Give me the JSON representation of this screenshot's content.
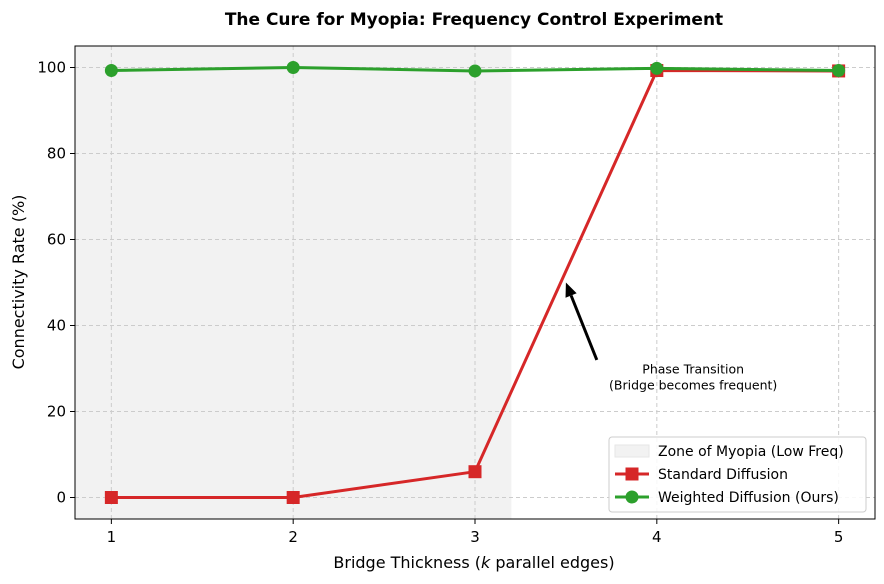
{
  "chart_data": {
    "type": "line",
    "title": "The Cure for Myopia: Frequency Control Experiment",
    "xlabel_prefix": "Bridge Thickness (",
    "xlabel_var": "k",
    "xlabel_suffix": " parallel edges)",
    "ylabel": "Connectivity Rate (%)",
    "x": [
      1,
      2,
      3,
      4,
      5
    ],
    "xlim": [
      0.8,
      5.2
    ],
    "ylim": [
      -5,
      105
    ],
    "xticks": [
      1,
      2,
      3,
      4,
      5
    ],
    "yticks": [
      0,
      20,
      40,
      60,
      80,
      100
    ],
    "grid": true,
    "series": [
      {
        "name": "Standard Diffusion",
        "values": [
          0,
          0,
          6,
          99.3,
          99.2
        ],
        "color": "#d62728",
        "marker": "square"
      },
      {
        "name": "Weighted Diffusion (Ours)",
        "values": [
          99.3,
          100,
          99.2,
          99.8,
          99.3
        ],
        "color": "#2ca02c",
        "marker": "circle"
      }
    ],
    "shaded_region": {
      "label": "Zone of Myopia (Low Freq)",
      "x_start": 0.8,
      "x_end": 3.2,
      "color": "#f2f2f2"
    },
    "annotation": {
      "lines": [
        "Phase Transition",
        "(Bridge becomes frequent)"
      ],
      "text_x": 4.2,
      "text_y": 27,
      "arrow_from": [
        3.67,
        32
      ],
      "arrow_to": [
        3.5,
        50
      ]
    },
    "legend_position": "lower-right"
  }
}
